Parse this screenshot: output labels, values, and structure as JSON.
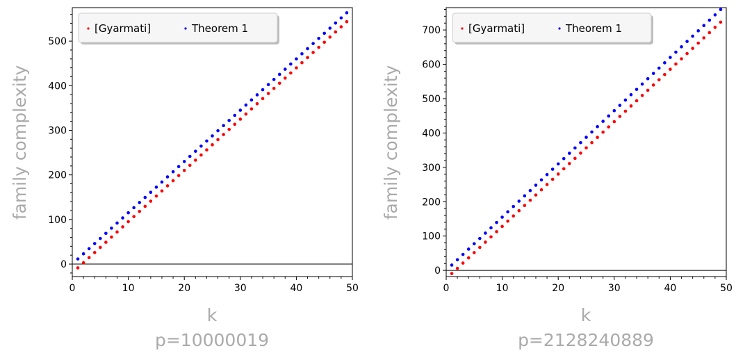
{
  "chart_data": [
    {
      "type": "scatter",
      "caption": "p=10000019",
      "xlabel": "k",
      "ylabel": "family complexity",
      "xlim": [
        0,
        50
      ],
      "ylim": [
        -28,
        575
      ],
      "xticks": [
        "0",
        "10",
        "20",
        "30",
        "40",
        "50"
      ],
      "yticks": [
        "0",
        "100",
        "200",
        "300",
        "400",
        "500"
      ],
      "legend_position": "top-left",
      "series": [
        {
          "name": "[Gyarmati]",
          "color": "#ff0000",
          "intercept": -20.0,
          "slope": 11.5,
          "x_from": 1,
          "x_to": 49
        },
        {
          "name": "Theorem 1",
          "color": "#0000ff",
          "intercept": 0.0,
          "slope": 11.5,
          "x_from": 1,
          "x_to": 49
        }
      ]
    },
    {
      "type": "scatter",
      "caption": "p=2128240889",
      "xlabel": "k",
      "ylabel": "family complexity",
      "xlim": [
        0,
        50
      ],
      "ylim": [
        -18,
        765
      ],
      "xticks": [
        "0",
        "10",
        "20",
        "30",
        "40",
        "50"
      ],
      "yticks": [
        "0",
        "100",
        "200",
        "300",
        "400",
        "500",
        "600",
        "700"
      ],
      "legend_position": "top-left",
      "series": [
        {
          "name": "[Gyarmati]",
          "color": "#ff0000",
          "intercept": -24.5,
          "slope": 15.25,
          "x_from": 1,
          "x_to": 49
        },
        {
          "name": "Theorem 1",
          "color": "#0000ff",
          "intercept": 0.0,
          "slope": 15.5,
          "x_from": 1,
          "x_to": 49
        }
      ]
    }
  ]
}
